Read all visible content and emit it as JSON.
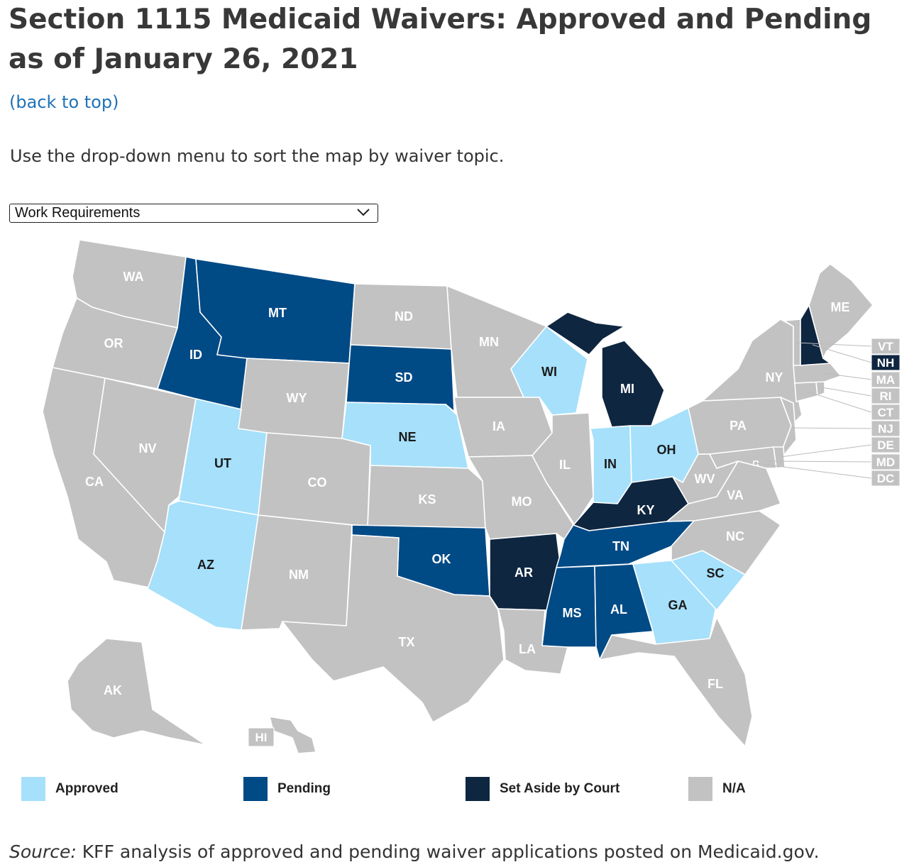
{
  "title": "Section 1115 Medicaid Waivers: Approved and Pending as of January 26, 2021",
  "back_link": "(back to top)",
  "instructions": "Use the drop-down menu to sort the map by waiver topic.",
  "dropdown": {
    "selected": "Work Requirements",
    "icon": "chevron-down-icon"
  },
  "colors": {
    "approved": "#a6e0fb",
    "pending": "#004a86",
    "set_aside": "#0f2640",
    "na": "#c2c2c2"
  },
  "legend": [
    {
      "key": "approved",
      "label": "Approved"
    },
    {
      "key": "pending",
      "label": "Pending"
    },
    {
      "key": "set_aside",
      "label": "Set Aside by Court"
    },
    {
      "key": "na",
      "label": "N/A"
    }
  ],
  "states": {
    "WA": "na",
    "OR": "na",
    "CA": "na",
    "NV": "na",
    "ID": "pending",
    "MT": "pending",
    "WY": "na",
    "UT": "approved",
    "AZ": "approved",
    "CO": "na",
    "NM": "na",
    "ND": "na",
    "SD": "pending",
    "NE": "approved",
    "KS": "na",
    "OK": "pending",
    "TX": "na",
    "MN": "na",
    "IA": "na",
    "MO": "na",
    "AR": "set_aside",
    "LA": "na",
    "WI": "approved",
    "IL": "na",
    "MI": "set_aside",
    "IN": "approved",
    "OH": "approved",
    "KY": "set_aside",
    "TN": "pending",
    "MS": "pending",
    "AL": "pending",
    "GA": "approved",
    "SC": "approved",
    "FL": "na",
    "NC": "na",
    "VA": "na",
    "WV": "na",
    "PA": "na",
    "NY": "na",
    "ME": "na",
    "VT": "na",
    "NH": "set_aside",
    "MA": "na",
    "RI": "na",
    "CT": "na",
    "NJ": "na",
    "DE": "na",
    "MD": "na",
    "DC": "na",
    "AK": "na",
    "HI": "na"
  },
  "labels": {
    "WA": "WA",
    "OR": "OR",
    "CA": "CA",
    "NV": "NV",
    "ID": "ID",
    "MT": "MT",
    "WY": "WY",
    "UT": "UT",
    "AZ": "AZ",
    "CO": "CO",
    "NM": "NM",
    "ND": "ND",
    "SD": "SD",
    "NE": "NE",
    "KS": "KS",
    "OK": "OK",
    "TX": "TX",
    "MN": "MN",
    "IA": "IA",
    "MO": "MO",
    "AR": "AR",
    "LA": "LA",
    "WI": "WI",
    "IL": "IL",
    "MI": "MI",
    "IN": "IN",
    "OH": "OH",
    "KY": "KY",
    "TN": "TN",
    "MS": "MS",
    "AL": "AL",
    "GA": "GA",
    "SC": "SC",
    "FL": "FL",
    "NC": "NC",
    "VA": "VA",
    "WV": "WV",
    "PA": "PA",
    "NY": "NY",
    "ME": "ME",
    "AK": "AK",
    "HI": "HI",
    "VT": "VT",
    "NH": "NH",
    "MA": "MA",
    "RI": "RI",
    "CT": "CT",
    "NJ": "NJ",
    "DE": "DE",
    "MD": "MD",
    "DC": "DC"
  },
  "source_prefix": "Source:",
  "source_text": " KFF analysis of approved and pending waiver applications posted on Medicaid.gov."
}
